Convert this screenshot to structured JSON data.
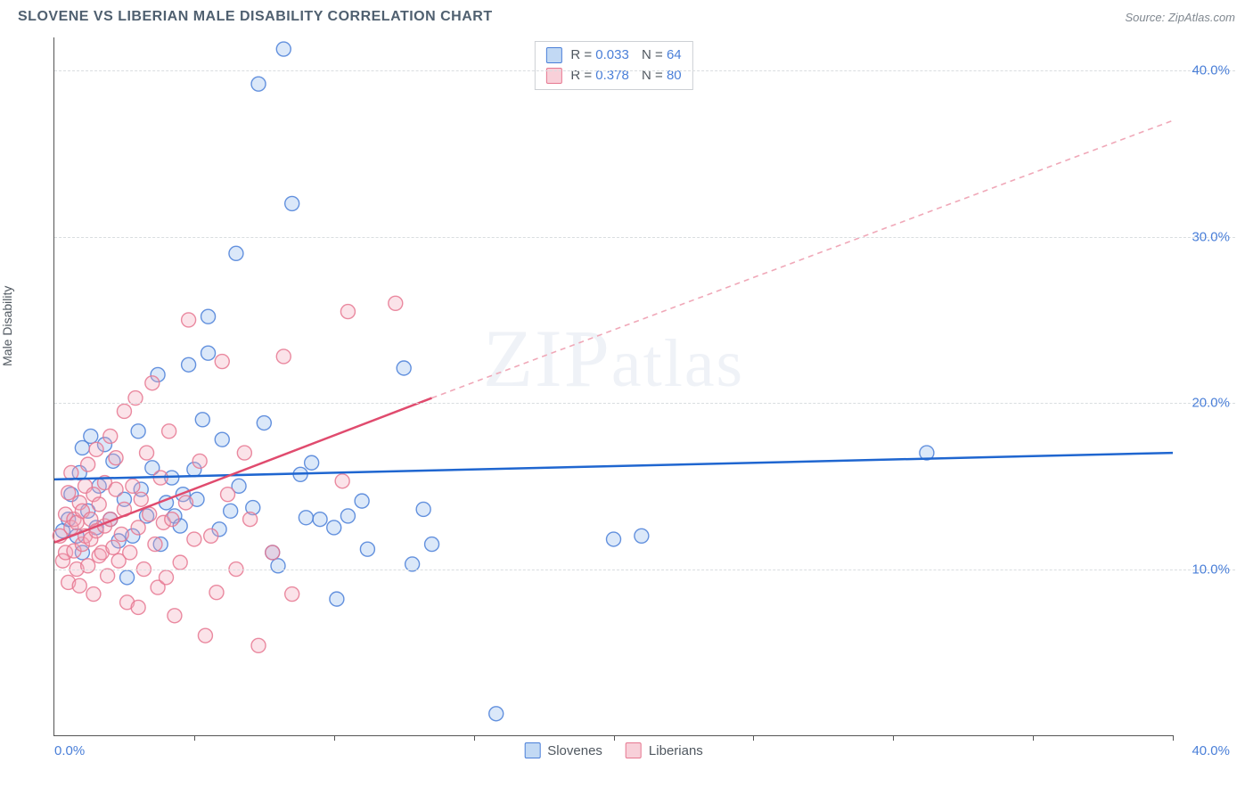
{
  "header": {
    "title": "SLOVENE VS LIBERIAN MALE DISABILITY CORRELATION CHART",
    "source": "Source: ZipAtlas.com"
  },
  "watermark_text": "ZIPatlas",
  "chart": {
    "type": "scatter",
    "ylabel": "Male Disability",
    "xlim": [
      0,
      40
    ],
    "ylim": [
      0,
      42
    ],
    "xtick_positions": [
      0,
      5,
      10,
      15,
      20,
      25,
      30,
      35,
      40
    ],
    "x_axis_label_left": "0.0%",
    "x_axis_label_right": "40.0%",
    "y_gridlines": [
      {
        "value": 10,
        "label": "10.0%"
      },
      {
        "value": 20,
        "label": "20.0%"
      },
      {
        "value": 30,
        "label": "30.0%"
      },
      {
        "value": 40,
        "label": "40.0%"
      }
    ],
    "background_color": "#ffffff",
    "grid_color": "#d9dde0",
    "axis_color": "#555555",
    "marker_radius": 8,
    "marker_fill_opacity": 0.32,
    "marker_stroke_opacity": 0.85,
    "series": [
      {
        "name": "Slovenes",
        "color_fill": "#8fb8ec",
        "color_stroke": "#4a7fd8",
        "R": "0.033",
        "N": "64",
        "trend": {
          "x1": 0,
          "y1": 15.4,
          "x2": 40,
          "y2": 17.0,
          "dash": false,
          "stroke": "#1f66d0",
          "width": 2.5
        },
        "points": [
          [
            0.3,
            12.3
          ],
          [
            0.5,
            13.0
          ],
          [
            0.6,
            14.5
          ],
          [
            0.8,
            12.0
          ],
          [
            0.9,
            15.8
          ],
          [
            1.0,
            11.0
          ],
          [
            1.0,
            17.3
          ],
          [
            1.2,
            13.5
          ],
          [
            1.3,
            18.0
          ],
          [
            1.5,
            12.5
          ],
          [
            1.6,
            15.0
          ],
          [
            1.8,
            17.5
          ],
          [
            2.0,
            13.0
          ],
          [
            2.1,
            16.5
          ],
          [
            2.3,
            11.7
          ],
          [
            2.5,
            14.2
          ],
          [
            2.6,
            9.5
          ],
          [
            2.8,
            12.0
          ],
          [
            3.0,
            18.3
          ],
          [
            3.1,
            14.8
          ],
          [
            3.3,
            13.2
          ],
          [
            3.5,
            16.1
          ],
          [
            3.7,
            21.7
          ],
          [
            3.8,
            11.5
          ],
          [
            4.0,
            14.0
          ],
          [
            4.2,
            15.5
          ],
          [
            4.3,
            13.2
          ],
          [
            4.5,
            12.6
          ],
          [
            4.8,
            22.3
          ],
          [
            5.0,
            16.0
          ],
          [
            5.1,
            14.2
          ],
          [
            5.3,
            19.0
          ],
          [
            5.5,
            23.0
          ],
          [
            5.5,
            25.2
          ],
          [
            5.9,
            12.4
          ],
          [
            6.0,
            17.8
          ],
          [
            6.3,
            13.5
          ],
          [
            6.5,
            29.0
          ],
          [
            6.6,
            15.0
          ],
          [
            7.1,
            13.7
          ],
          [
            7.3,
            39.2
          ],
          [
            7.5,
            18.8
          ],
          [
            7.8,
            11.0
          ],
          [
            8.0,
            10.2
          ],
          [
            8.2,
            41.3
          ],
          [
            8.5,
            32.0
          ],
          [
            8.8,
            15.7
          ],
          [
            9.0,
            13.1
          ],
          [
            9.2,
            16.4
          ],
          [
            9.5,
            13.0
          ],
          [
            10.0,
            12.5
          ],
          [
            10.1,
            8.2
          ],
          [
            10.5,
            13.2
          ],
          [
            11.0,
            14.1
          ],
          [
            11.2,
            11.2
          ],
          [
            12.5,
            22.1
          ],
          [
            12.8,
            10.3
          ],
          [
            13.2,
            13.6
          ],
          [
            13.5,
            11.5
          ],
          [
            15.8,
            1.3
          ],
          [
            20.0,
            11.8
          ],
          [
            21.0,
            12.0
          ],
          [
            31.2,
            17.0
          ],
          [
            4.6,
            14.5
          ]
        ]
      },
      {
        "name": "Liberians",
        "color_fill": "#f3a9ba",
        "color_stroke": "#e67790",
        "R": "0.378",
        "N": "80",
        "trend_solid": {
          "x1": 0,
          "y1": 11.6,
          "x2": 13.5,
          "y2": 20.3,
          "stroke": "#e04b6e",
          "width": 2.5
        },
        "trend_dashed": {
          "x1": 13.5,
          "y1": 20.3,
          "x2": 40,
          "y2": 37.0,
          "stroke": "#f0a8b8",
          "width": 1.6
        },
        "points": [
          [
            0.2,
            12.0
          ],
          [
            0.3,
            10.5
          ],
          [
            0.4,
            13.3
          ],
          [
            0.4,
            11.0
          ],
          [
            0.5,
            14.6
          ],
          [
            0.5,
            9.2
          ],
          [
            0.6,
            12.5
          ],
          [
            0.6,
            15.8
          ],
          [
            0.7,
            11.1
          ],
          [
            0.7,
            13.0
          ],
          [
            0.8,
            10.0
          ],
          [
            0.8,
            12.8
          ],
          [
            0.9,
            14.0
          ],
          [
            0.9,
            9.0
          ],
          [
            1.0,
            11.5
          ],
          [
            1.0,
            13.5
          ],
          [
            1.1,
            15.0
          ],
          [
            1.1,
            12.0
          ],
          [
            1.2,
            10.2
          ],
          [
            1.2,
            16.3
          ],
          [
            1.3,
            13.0
          ],
          [
            1.3,
            11.8
          ],
          [
            1.4,
            14.5
          ],
          [
            1.4,
            8.5
          ],
          [
            1.5,
            12.3
          ],
          [
            1.5,
            17.2
          ],
          [
            1.6,
            10.8
          ],
          [
            1.6,
            13.9
          ],
          [
            1.7,
            11.0
          ],
          [
            1.8,
            15.2
          ],
          [
            1.8,
            12.6
          ],
          [
            1.9,
            9.6
          ],
          [
            2.0,
            18.0
          ],
          [
            2.0,
            13.0
          ],
          [
            2.1,
            11.3
          ],
          [
            2.2,
            14.8
          ],
          [
            2.2,
            16.7
          ],
          [
            2.3,
            10.5
          ],
          [
            2.4,
            12.1
          ],
          [
            2.5,
            19.5
          ],
          [
            2.5,
            13.6
          ],
          [
            2.6,
            8.0
          ],
          [
            2.7,
            11.0
          ],
          [
            2.8,
            15.0
          ],
          [
            2.9,
            20.3
          ],
          [
            3.0,
            12.5
          ],
          [
            3.0,
            7.7
          ],
          [
            3.1,
            14.2
          ],
          [
            3.2,
            10.0
          ],
          [
            3.3,
            17.0
          ],
          [
            3.4,
            13.3
          ],
          [
            3.5,
            21.2
          ],
          [
            3.6,
            11.5
          ],
          [
            3.7,
            8.9
          ],
          [
            3.8,
            15.5
          ],
          [
            3.9,
            12.8
          ],
          [
            4.0,
            9.5
          ],
          [
            4.1,
            18.3
          ],
          [
            4.2,
            13.0
          ],
          [
            4.3,
            7.2
          ],
          [
            4.5,
            10.4
          ],
          [
            4.7,
            14.0
          ],
          [
            4.8,
            25.0
          ],
          [
            5.0,
            11.8
          ],
          [
            5.2,
            16.5
          ],
          [
            5.4,
            6.0
          ],
          [
            5.6,
            12.0
          ],
          [
            5.8,
            8.6
          ],
          [
            6.0,
            22.5
          ],
          [
            6.2,
            14.5
          ],
          [
            6.5,
            10.0
          ],
          [
            6.8,
            17.0
          ],
          [
            7.0,
            13.0
          ],
          [
            7.3,
            5.4
          ],
          [
            7.8,
            11.0
          ],
          [
            8.2,
            22.8
          ],
          [
            8.5,
            8.5
          ],
          [
            10.3,
            15.3
          ],
          [
            10.5,
            25.5
          ],
          [
            12.2,
            26.0
          ]
        ]
      }
    ],
    "legend_bottom": [
      {
        "label": "Slovenes",
        "color_fill": "#8fb8ec",
        "color_stroke": "#4a7fd8"
      },
      {
        "label": "Liberians",
        "color_fill": "#f3a9ba",
        "color_stroke": "#e67790"
      }
    ]
  }
}
